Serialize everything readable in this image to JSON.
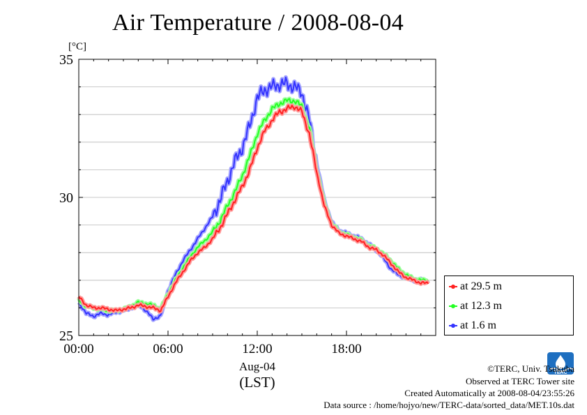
{
  "chart_data": {
    "type": "line",
    "title": "Air Temperature / 2008-08-04",
    "ylabel": "[°C]",
    "xlabel": "(LST)",
    "x_date_label": "Aug-04",
    "xlim": [
      "00:00",
      "24:00"
    ],
    "ylim": [
      25,
      35
    ],
    "x_ticks": [
      "00:00",
      "06:00",
      "12:00",
      "18:00"
    ],
    "y_ticks": [
      25,
      30,
      35
    ],
    "grid": true,
    "legend_position": "right-bottom",
    "series": [
      {
        "name": "at 29.5 m",
        "color": "#ff2020",
        "x": [
          "00:00",
          "00:30",
          "01:00",
          "01:30",
          "02:00",
          "02:30",
          "03:00",
          "03:30",
          "04:00",
          "04:30",
          "05:00",
          "05:30",
          "06:00",
          "06:30",
          "07:00",
          "07:30",
          "08:00",
          "08:30",
          "09:00",
          "09:30",
          "10:00",
          "10:30",
          "11:00",
          "11:30",
          "12:00",
          "12:30",
          "13:00",
          "13:30",
          "14:00",
          "14:30",
          "15:00",
          "15:30",
          "16:00",
          "16:30",
          "17:00",
          "17:30",
          "18:00",
          "18:30",
          "19:00",
          "19:30",
          "20:00",
          "20:30",
          "21:00",
          "21:30",
          "22:00",
          "22:30",
          "23:00",
          "23:30"
        ],
        "values": [
          26.4,
          26.1,
          26.0,
          26.0,
          25.95,
          25.9,
          25.95,
          26.0,
          26.1,
          26.05,
          26.0,
          25.9,
          26.4,
          26.9,
          27.3,
          27.7,
          28.0,
          28.2,
          28.5,
          28.9,
          29.4,
          29.9,
          30.4,
          31.0,
          31.8,
          32.4,
          32.8,
          33.1,
          33.2,
          33.3,
          33.1,
          32.3,
          30.9,
          29.7,
          29.0,
          28.7,
          28.6,
          28.5,
          28.4,
          28.2,
          28.1,
          27.9,
          27.6,
          27.3,
          27.1,
          27.0,
          26.9,
          26.9
        ]
      },
      {
        "name": "at 12.3 m",
        "color": "#22ff22",
        "x": [
          "00:00",
          "00:30",
          "01:00",
          "01:30",
          "02:00",
          "02:30",
          "03:00",
          "03:30",
          "04:00",
          "04:30",
          "05:00",
          "05:30",
          "06:00",
          "06:30",
          "07:00",
          "07:30",
          "08:00",
          "08:30",
          "09:00",
          "09:30",
          "10:00",
          "10:30",
          "11:00",
          "11:30",
          "12:00",
          "12:30",
          "13:00",
          "13:30",
          "14:00",
          "14:30",
          "15:00",
          "15:30",
          "16:00",
          "16:30",
          "17:00",
          "17:30",
          "18:00",
          "18:30",
          "19:00",
          "19:30",
          "20:00",
          "20:30",
          "21:00",
          "21:30",
          "22:00",
          "22:30",
          "23:00",
          "23:30"
        ],
        "values": [
          26.3,
          26.05,
          26.0,
          25.95,
          25.9,
          25.9,
          25.95,
          26.05,
          26.2,
          26.15,
          26.1,
          25.95,
          26.5,
          27.0,
          27.45,
          27.85,
          28.2,
          28.45,
          28.75,
          29.15,
          29.7,
          30.2,
          30.8,
          31.5,
          32.3,
          32.8,
          33.2,
          33.4,
          33.5,
          33.5,
          33.3,
          32.5,
          31.0,
          29.8,
          29.05,
          28.75,
          28.65,
          28.55,
          28.45,
          28.25,
          28.15,
          27.95,
          27.7,
          27.4,
          27.2,
          27.05,
          27.0,
          27.0
        ]
      },
      {
        "name": "at 1.6 m",
        "color": "#3333ff",
        "x": [
          "00:00",
          "00:30",
          "01:00",
          "01:30",
          "02:00",
          "02:30",
          "03:00",
          "03:30",
          "04:00",
          "04:30",
          "05:00",
          "05:30",
          "06:00",
          "06:30",
          "07:00",
          "07:30",
          "08:00",
          "08:30",
          "09:00",
          "09:30",
          "10:00",
          "10:30",
          "11:00",
          "11:30",
          "12:00",
          "12:30",
          "13:00",
          "13:30",
          "14:00",
          "14:30",
          "15:00",
          "15:30",
          "16:00",
          "16:30",
          "17:00",
          "17:30",
          "18:00",
          "18:30",
          "19:00",
          "19:30",
          "20:00",
          "20:30",
          "21:00",
          "21:30",
          "22:00",
          "22:30",
          "23:00",
          "23:30"
        ],
        "values": [
          26.2,
          25.8,
          25.7,
          25.8,
          25.75,
          25.85,
          25.9,
          26.0,
          26.15,
          25.9,
          25.6,
          25.7,
          26.6,
          27.2,
          27.7,
          28.1,
          28.5,
          28.9,
          29.3,
          29.9,
          30.6,
          31.3,
          31.8,
          32.6,
          33.6,
          33.9,
          34.0,
          34.1,
          34.1,
          34.0,
          33.8,
          32.8,
          31.2,
          29.9,
          29.1,
          28.8,
          28.7,
          28.6,
          28.5,
          28.3,
          28.1,
          27.8,
          27.4,
          27.2,
          27.1,
          27.0,
          27.0,
          27.0
        ]
      }
    ]
  },
  "footer": {
    "copyright": "©TERC, Univ. Tsukuba",
    "observed": "Observed at TERC Tower site",
    "created": "Created Automatically at 2008-08-04/23:55:26",
    "source": "Data source : /home/hojyo/new/TERC-data/sorted_data/MET.10s.dat"
  },
  "logo": {
    "text": "TERC",
    "color": "#1e6fc0"
  }
}
